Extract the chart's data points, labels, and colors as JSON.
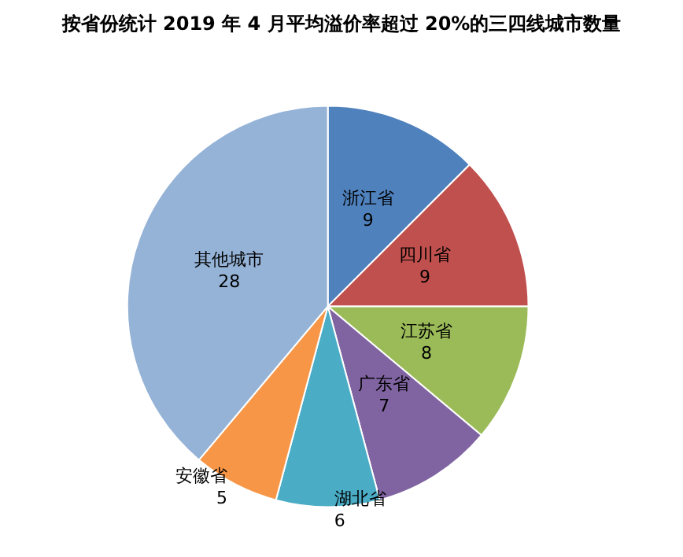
{
  "chart_data": {
    "type": "pie",
    "title": "按省份统计 2019 年 4 月平均溢价率超过 20%的三四线城市数量",
    "categories": [
      "浙江省",
      "四川省",
      "江苏省",
      "广东省",
      "湖北省",
      "安徽省",
      "其他城市"
    ],
    "values": [
      9,
      9,
      8,
      7,
      6,
      5,
      28
    ],
    "colors": [
      "#4f81bd",
      "#c0504d",
      "#9bbb59",
      "#8064a2",
      "#4bacc6",
      "#f79646",
      "#95b3d7"
    ],
    "data_labels": true,
    "legend": false
  }
}
